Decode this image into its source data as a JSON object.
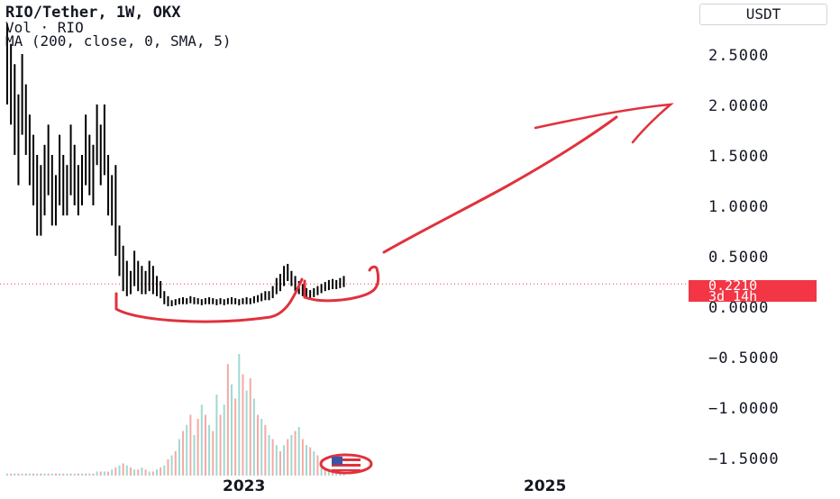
{
  "legend": {
    "title": "RIO/Tether, 1W, OKX",
    "volume": "Vol · RIO",
    "ma": "MA (200, close, 0, SMA, 5)"
  },
  "price_axis": {
    "currency": "USDT",
    "ticks": [
      "2.5000",
      "2.0000",
      "1.5000",
      "1.0000",
      "0.5000",
      "0.0000",
      "−0.5000",
      "−1.0000",
      "−1.5000"
    ],
    "last_price": "0.2210",
    "countdown": "3d 14h"
  },
  "time_axis": {
    "labels": [
      "2023",
      "2025"
    ]
  },
  "colors": {
    "bull": "#26a69a",
    "bear": "#ef5350",
    "candle": "#000000",
    "annotation": "#e0323d",
    "last_price": "#f23645"
  },
  "chart_data": {
    "type": "bar",
    "symbol": "RIO/Tether",
    "interval": "1W",
    "exchange": "OKX",
    "ylim": [
      -1.7,
      2.85
    ],
    "price_series": {
      "name": "RIO/Tether",
      "close": [
        2.5,
        2.3,
        2.0,
        1.7,
        2.2,
        1.9,
        1.6,
        1.4,
        1.2,
        1.1,
        1.3,
        1.5,
        1.2,
        1.0,
        1.4,
        1.2,
        1.1,
        1.5,
        1.3,
        1.1,
        1.2,
        1.6,
        1.4,
        1.3,
        1.8,
        1.5,
        1.7,
        1.2,
        1.0,
        1.1,
        0.6,
        0.4,
        0.3,
        0.2,
        0.35,
        0.3,
        0.25,
        0.2,
        0.3,
        0.25,
        0.2,
        0.18,
        0.1,
        0.05,
        0.03,
        0.04,
        0.05,
        0.06,
        0.05,
        0.07,
        0.06,
        0.05,
        0.04,
        0.05,
        0.06,
        0.05,
        0.04,
        0.05,
        0.04,
        0.05,
        0.06,
        0.05,
        0.04,
        0.05,
        0.06,
        0.05,
        0.07,
        0.08,
        0.1,
        0.12,
        0.11,
        0.15,
        0.2,
        0.25,
        0.3,
        0.35,
        0.28,
        0.22,
        0.18,
        0.15,
        0.12,
        0.1,
        0.13,
        0.15,
        0.17,
        0.19,
        0.2,
        0.21,
        0.2,
        0.22,
        0.221
      ],
      "range_low": [
        2.0,
        1.8,
        1.5,
        1.2,
        1.7,
        1.5,
        1.2,
        1.0,
        0.7,
        0.7,
        0.9,
        1.1,
        0.8,
        0.8,
        1.0,
        0.9,
        0.9,
        1.1,
        1.0,
        0.9,
        1.0,
        1.2,
        1.1,
        1.0,
        1.4,
        1.2,
        1.3,
        0.9,
        0.8,
        0.5,
        0.3,
        0.15,
        0.1,
        0.12,
        0.2,
        0.15,
        0.12,
        0.12,
        0.15,
        0.12,
        0.1,
        0.08,
        0.02,
        0.0,
        0.0,
        0.01,
        0.02,
        0.02,
        0.02,
        0.03,
        0.02,
        0.02,
        0.01,
        0.02,
        0.02,
        0.02,
        0.01,
        0.02,
        0.01,
        0.02,
        0.02,
        0.02,
        0.01,
        0.02,
        0.02,
        0.02,
        0.03,
        0.04,
        0.05,
        0.06,
        0.06,
        0.08,
        0.12,
        0.15,
        0.2,
        0.25,
        0.2,
        0.15,
        0.12,
        0.1,
        0.08,
        0.07,
        0.09,
        0.11,
        0.13,
        0.15,
        0.16,
        0.17,
        0.17,
        0.18,
        0.19
      ],
      "range_high": [
        2.8,
        2.6,
        2.4,
        2.1,
        2.5,
        2.2,
        1.9,
        1.7,
        1.5,
        1.4,
        1.6,
        1.8,
        1.5,
        1.3,
        1.7,
        1.5,
        1.4,
        1.8,
        1.6,
        1.4,
        1.5,
        1.9,
        1.7,
        1.6,
        2.0,
        1.8,
        2.0,
        1.5,
        1.3,
        1.4,
        0.8,
        0.6,
        0.45,
        0.35,
        0.55,
        0.45,
        0.4,
        0.35,
        0.45,
        0.4,
        0.3,
        0.25,
        0.15,
        0.1,
        0.06,
        0.07,
        0.08,
        0.09,
        0.08,
        0.1,
        0.09,
        0.08,
        0.07,
        0.08,
        0.09,
        0.08,
        0.07,
        0.08,
        0.07,
        0.08,
        0.09,
        0.08,
        0.07,
        0.08,
        0.09,
        0.08,
        0.1,
        0.11,
        0.13,
        0.15,
        0.15,
        0.2,
        0.28,
        0.32,
        0.4,
        0.42,
        0.35,
        0.3,
        0.25,
        0.22,
        0.18,
        0.16,
        0.18,
        0.2,
        0.22,
        0.24,
        0.26,
        0.27,
        0.26,
        0.28,
        0.3
      ]
    },
    "volume_series": {
      "name": "Vol · RIO",
      "values": [
        1,
        1,
        1,
        1,
        1,
        1,
        1,
        1,
        1,
        1,
        1,
        1,
        1,
        1,
        1,
        1,
        1,
        1,
        1,
        1,
        1,
        1,
        1,
        1,
        2,
        2,
        2,
        2,
        3,
        4,
        5,
        6,
        5,
        4,
        3,
        3,
        4,
        3,
        2,
        2,
        3,
        4,
        5,
        8,
        10,
        12,
        18,
        22,
        25,
        30,
        20,
        28,
        35,
        30,
        25,
        22,
        40,
        30,
        35,
        55,
        45,
        38,
        60,
        50,
        42,
        48,
        38,
        30,
        28,
        25,
        20,
        18,
        15,
        12,
        15,
        18,
        20,
        22,
        24,
        18,
        15,
        14,
        12,
        10,
        8,
        6,
        7,
        6,
        5,
        4,
        4
      ],
      "up": [
        1,
        0,
        1,
        0,
        1,
        0,
        1,
        0,
        1,
        0,
        1,
        0,
        1,
        0,
        1,
        0,
        1,
        0,
        1,
        0,
        1,
        0,
        1,
        0,
        1,
        0,
        1,
        0,
        1,
        0,
        1,
        0,
        1,
        0,
        1,
        0,
        1,
        0,
        1,
        0,
        1,
        0,
        1,
        0,
        1,
        0,
        1,
        0,
        1,
        0,
        1,
        0,
        1,
        0,
        1,
        0,
        1,
        0,
        1,
        0,
        1,
        0,
        1,
        0,
        1,
        0,
        1,
        0,
        1,
        0,
        1,
        0,
        1,
        0,
        1,
        0,
        1,
        0,
        1,
        0,
        1,
        0,
        1,
        0,
        1,
        0,
        1,
        0,
        1,
        0,
        1
      ]
    }
  }
}
